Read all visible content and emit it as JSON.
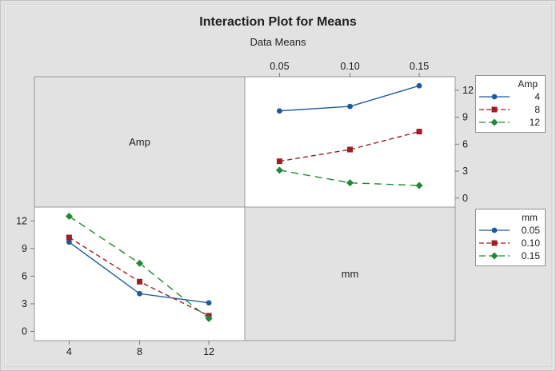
{
  "title": "Interaction Plot for Means",
  "subtitle": "Data Means",
  "factors": {
    "row_label": "Amp",
    "col_label": "mm"
  },
  "colors": {
    "background": "#E2E2E2",
    "panel_bg": "#FFFFFF",
    "panel_border": "#9A9A9A",
    "tick": "#7A7A7A",
    "text": "#1A1A1A",
    "series_1": "#1A5B9E",
    "series_2": "#9E1F21",
    "series_3": "#1E8A34"
  },
  "legends": {
    "amp": {
      "title": "Amp",
      "items": [
        {
          "label": "4"
        },
        {
          "label": "8"
        },
        {
          "label": "12"
        }
      ]
    },
    "mm": {
      "title": "mm",
      "items": [
        {
          "label": "0.05"
        },
        {
          "label": "0.10"
        },
        {
          "label": "0.15"
        }
      ]
    }
  },
  "chart_data": [
    {
      "type": "line",
      "panel": "top-right",
      "title": "Mean response vs mm, lines = Amp level",
      "x_axis": {
        "position": "top",
        "tick_labels": [
          "0.05",
          "0.10",
          "0.15"
        ]
      },
      "y_axis": {
        "position": "right",
        "ticks": [
          0,
          3,
          6,
          9,
          12
        ],
        "range": [
          -1,
          13.5
        ]
      },
      "grid": false,
      "series": [
        {
          "name": "Amp 4",
          "marker": "circle",
          "dash": "solid",
          "values": [
            9.7,
            10.2,
            12.5
          ]
        },
        {
          "name": "Amp 8",
          "marker": "square",
          "dash": "dashed",
          "values": [
            4.1,
            5.4,
            7.4
          ]
        },
        {
          "name": "Amp 12",
          "marker": "diamond",
          "dash": "longdash",
          "values": [
            3.1,
            1.7,
            1.4
          ]
        }
      ]
    },
    {
      "type": "line",
      "panel": "bottom-left",
      "title": "Mean response vs Amp, lines = mm level",
      "x_axis": {
        "position": "bottom",
        "tick_labels": [
          "4",
          "8",
          "12"
        ]
      },
      "y_axis": {
        "position": "left",
        "ticks": [
          0,
          3,
          6,
          9,
          12
        ],
        "range": [
          -1,
          13.5
        ]
      },
      "grid": false,
      "series": [
        {
          "name": "mm 0.05",
          "marker": "circle",
          "dash": "solid",
          "values": [
            9.7,
            4.1,
            3.1
          ]
        },
        {
          "name": "mm 0.10",
          "marker": "square",
          "dash": "dashed",
          "values": [
            10.2,
            5.4,
            1.7
          ]
        },
        {
          "name": "mm 0.15",
          "marker": "diamond",
          "dash": "longdash",
          "values": [
            12.5,
            7.4,
            1.4
          ]
        }
      ]
    }
  ]
}
